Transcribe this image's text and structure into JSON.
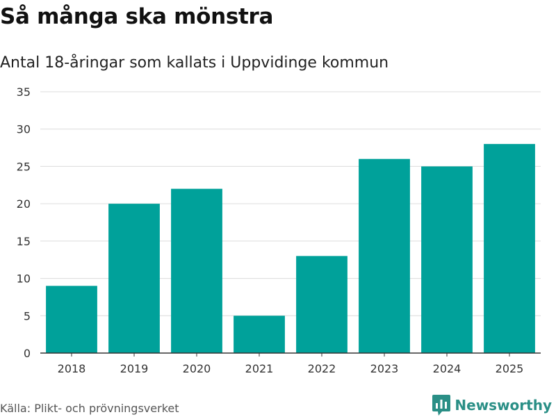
{
  "title": "Så många ska mönstra",
  "subtitle": "Antal 18-åringar som kallats i Uppvidinge kommun",
  "source": "Källa: Plikt- och prövningsverket",
  "brand": {
    "name": "Newsworthy",
    "icon": "newsworthy-logo-icon",
    "color": "#2a8f86"
  },
  "chart_data": {
    "type": "bar",
    "title": "Så många ska mönstra",
    "subtitle": "Antal 18-åringar som kallats i Uppvidinge kommun",
    "xlabel": "",
    "ylabel": "",
    "categories": [
      "2018",
      "2019",
      "2020",
      "2021",
      "2022",
      "2023",
      "2024",
      "2025"
    ],
    "values": [
      9,
      20,
      22,
      5,
      13,
      26,
      25,
      28
    ],
    "ylim": [
      0,
      35
    ],
    "yticks": [
      0,
      5,
      10,
      15,
      20,
      25,
      30,
      35
    ],
    "grid": true,
    "bar_color": "#00a19a"
  }
}
